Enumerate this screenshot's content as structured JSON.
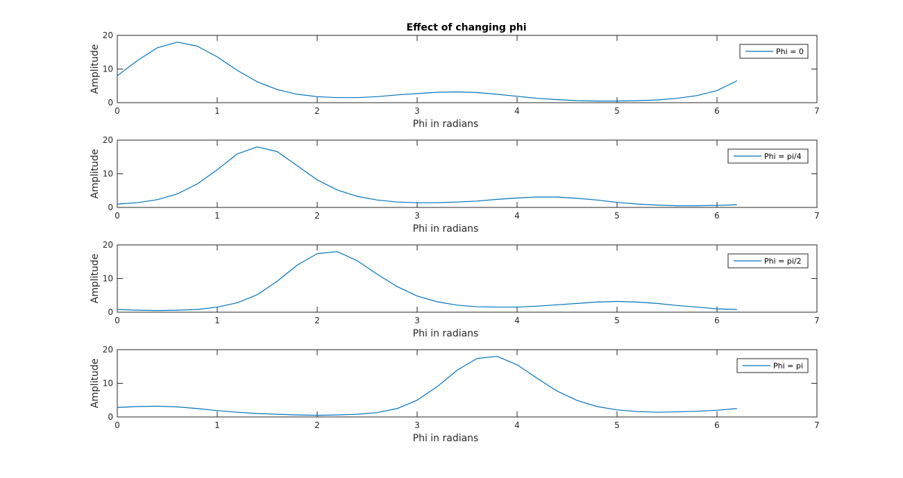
{
  "figure": {
    "title": "Effect of changing phi",
    "line_color": "#0072bd",
    "axis_color": "#262626",
    "background": "#ffffff"
  },
  "chart_data": [
    {
      "type": "line",
      "title": "Effect of changing phi",
      "xlabel": "Phi in radians",
      "ylabel": "Amplitude",
      "xlim": [
        0,
        7
      ],
      "ylim": [
        0,
        20
      ],
      "xticks": [
        0,
        1,
        2,
        3,
        4,
        5,
        6,
        7
      ],
      "yticks": [
        0,
        10,
        20
      ],
      "grid": false,
      "legend_position": "top-right",
      "series": [
        {
          "name": "Phi = 0",
          "x": [
            0,
            0.2,
            0.4,
            0.6,
            0.8,
            1.0,
            1.2,
            1.4,
            1.6,
            1.8,
            2.0,
            2.2,
            2.4,
            2.6,
            2.8,
            3.0,
            3.2,
            3.4,
            3.6,
            3.8,
            4.0,
            4.2,
            4.4,
            4.6,
            4.8,
            5.0,
            5.2,
            5.4,
            5.6,
            5.8,
            6.0,
            6.2
          ],
          "y": [
            8.0,
            12.5,
            16.3,
            18.0,
            16.8,
            13.6,
            9.6,
            6.2,
            3.9,
            2.5,
            1.8,
            1.5,
            1.5,
            1.8,
            2.3,
            2.7,
            3.1,
            3.2,
            3.0,
            2.5,
            1.9,
            1.3,
            0.9,
            0.6,
            0.5,
            0.5,
            0.6,
            0.8,
            1.3,
            2.1,
            3.6,
            6.5
          ]
        }
      ]
    },
    {
      "type": "line",
      "title": "",
      "xlabel": "Phi in radians",
      "ylabel": "Amplitude",
      "xlim": [
        0,
        7
      ],
      "ylim": [
        0,
        20
      ],
      "xticks": [
        0,
        1,
        2,
        3,
        4,
        5,
        6,
        7
      ],
      "yticks": [
        0,
        10,
        20
      ],
      "grid": false,
      "legend_position": "top-right",
      "series": [
        {
          "name": "Phi = pi/4",
          "x": [
            0,
            0.2,
            0.4,
            0.6,
            0.8,
            1.0,
            1.2,
            1.4,
            1.6,
            1.8,
            2.0,
            2.2,
            2.4,
            2.6,
            2.8,
            3.0,
            3.2,
            3.4,
            3.6,
            3.8,
            4.0,
            4.2,
            4.4,
            4.6,
            4.8,
            5.0,
            5.2,
            5.4,
            5.6,
            5.8,
            6.0,
            6.2
          ],
          "y": [
            1.0,
            1.4,
            2.3,
            4.0,
            7.0,
            11.2,
            15.9,
            18.0,
            16.6,
            12.4,
            8.2,
            5.2,
            3.3,
            2.2,
            1.6,
            1.4,
            1.4,
            1.6,
            1.9,
            2.4,
            2.8,
            3.1,
            3.1,
            2.7,
            2.2,
            1.5,
            1.0,
            0.7,
            0.5,
            0.5,
            0.6,
            0.8
          ]
        }
      ]
    },
    {
      "type": "line",
      "title": "",
      "xlabel": "Phi in radians",
      "ylabel": "Amplitude",
      "xlim": [
        0,
        7
      ],
      "ylim": [
        0,
        20
      ],
      "xticks": [
        0,
        1,
        2,
        3,
        4,
        5,
        6,
        7
      ],
      "yticks": [
        0,
        10,
        20
      ],
      "grid": false,
      "legend_position": "top-right",
      "series": [
        {
          "name": "Phi = pi/2",
          "x": [
            0,
            0.2,
            0.4,
            0.6,
            0.8,
            1.0,
            1.2,
            1.4,
            1.6,
            1.8,
            2.0,
            2.2,
            2.4,
            2.6,
            2.8,
            3.0,
            3.2,
            3.4,
            3.6,
            3.8,
            4.0,
            4.2,
            4.4,
            4.6,
            4.8,
            5.0,
            5.2,
            5.4,
            5.6,
            5.8,
            6.0,
            6.2
          ],
          "y": [
            0.8,
            0.6,
            0.5,
            0.6,
            0.8,
            1.5,
            2.8,
            5.2,
            9.2,
            14.0,
            17.4,
            18.0,
            15.3,
            11.3,
            7.6,
            4.8,
            3.1,
            2.1,
            1.6,
            1.5,
            1.5,
            1.8,
            2.2,
            2.6,
            3.0,
            3.2,
            3.0,
            2.6,
            2.0,
            1.5,
            1.0,
            0.8
          ]
        }
      ]
    },
    {
      "type": "line",
      "title": "",
      "xlabel": "Phi in radians",
      "ylabel": "Amplitude",
      "xlim": [
        0,
        7
      ],
      "ylim": [
        0,
        20
      ],
      "xticks": [
        0,
        1,
        2,
        3,
        4,
        5,
        6,
        7
      ],
      "yticks": [
        0,
        10,
        20
      ],
      "grid": false,
      "legend_position": "top-right",
      "series": [
        {
          "name": "Phi = pi",
          "x": [
            0,
            0.2,
            0.4,
            0.6,
            0.8,
            1.0,
            1.2,
            1.4,
            1.6,
            1.8,
            2.0,
            2.2,
            2.4,
            2.6,
            2.8,
            3.0,
            3.2,
            3.4,
            3.6,
            3.8,
            4.0,
            4.2,
            4.4,
            4.6,
            4.8,
            5.0,
            5.2,
            5.4,
            5.6,
            5.8,
            6.0,
            6.2
          ],
          "y": [
            2.8,
            3.1,
            3.2,
            3.0,
            2.5,
            1.9,
            1.4,
            1.0,
            0.8,
            0.6,
            0.5,
            0.6,
            0.8,
            1.3,
            2.5,
            5.0,
            9.0,
            13.9,
            17.4,
            18.0,
            15.5,
            11.5,
            7.7,
            4.9,
            3.1,
            2.1,
            1.6,
            1.4,
            1.5,
            1.7,
            2.0,
            2.5
          ]
        }
      ]
    }
  ]
}
